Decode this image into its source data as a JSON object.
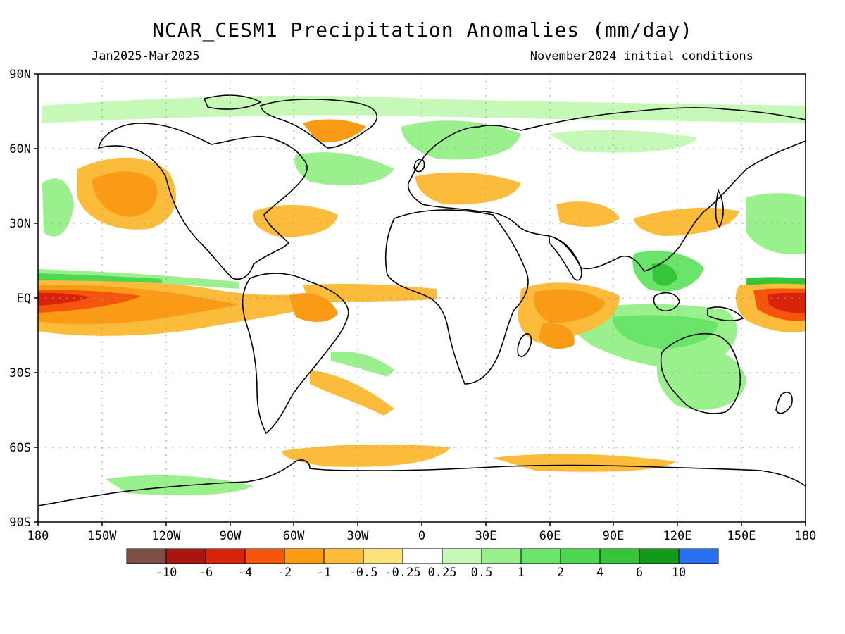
{
  "title": "NCAR_CESM1 Precipitation Anomalies (mm/day)",
  "period": "Jan2025-Mar2025",
  "init": "November2024 initial conditions",
  "lat_labels": [
    "90N",
    "60N",
    "30N",
    "EQ",
    "30S",
    "60S",
    "90S"
  ],
  "lon_labels": [
    "180",
    "150W",
    "120W",
    "90W",
    "60W",
    "30W",
    "0",
    "30E",
    "60E",
    "90E",
    "120E",
    "150E",
    "180"
  ],
  "legend": {
    "colors": [
      "#7b4f45",
      "#a8170f",
      "#d8220a",
      "#f2550b",
      "#f99b14",
      "#fcbc3b",
      "#fde17d",
      "#ffffff",
      "#c6f9b8",
      "#9af08c",
      "#6be46a",
      "#4fd753",
      "#35c43a",
      "#139a1a",
      "#2a6ff0"
    ],
    "labels": [
      "-10",
      "-6",
      "-4",
      "-2",
      "-1",
      "-0.5",
      "-0.25",
      "0.25",
      "0.5",
      "1",
      "2",
      "4",
      "6",
      "10"
    ]
  }
}
